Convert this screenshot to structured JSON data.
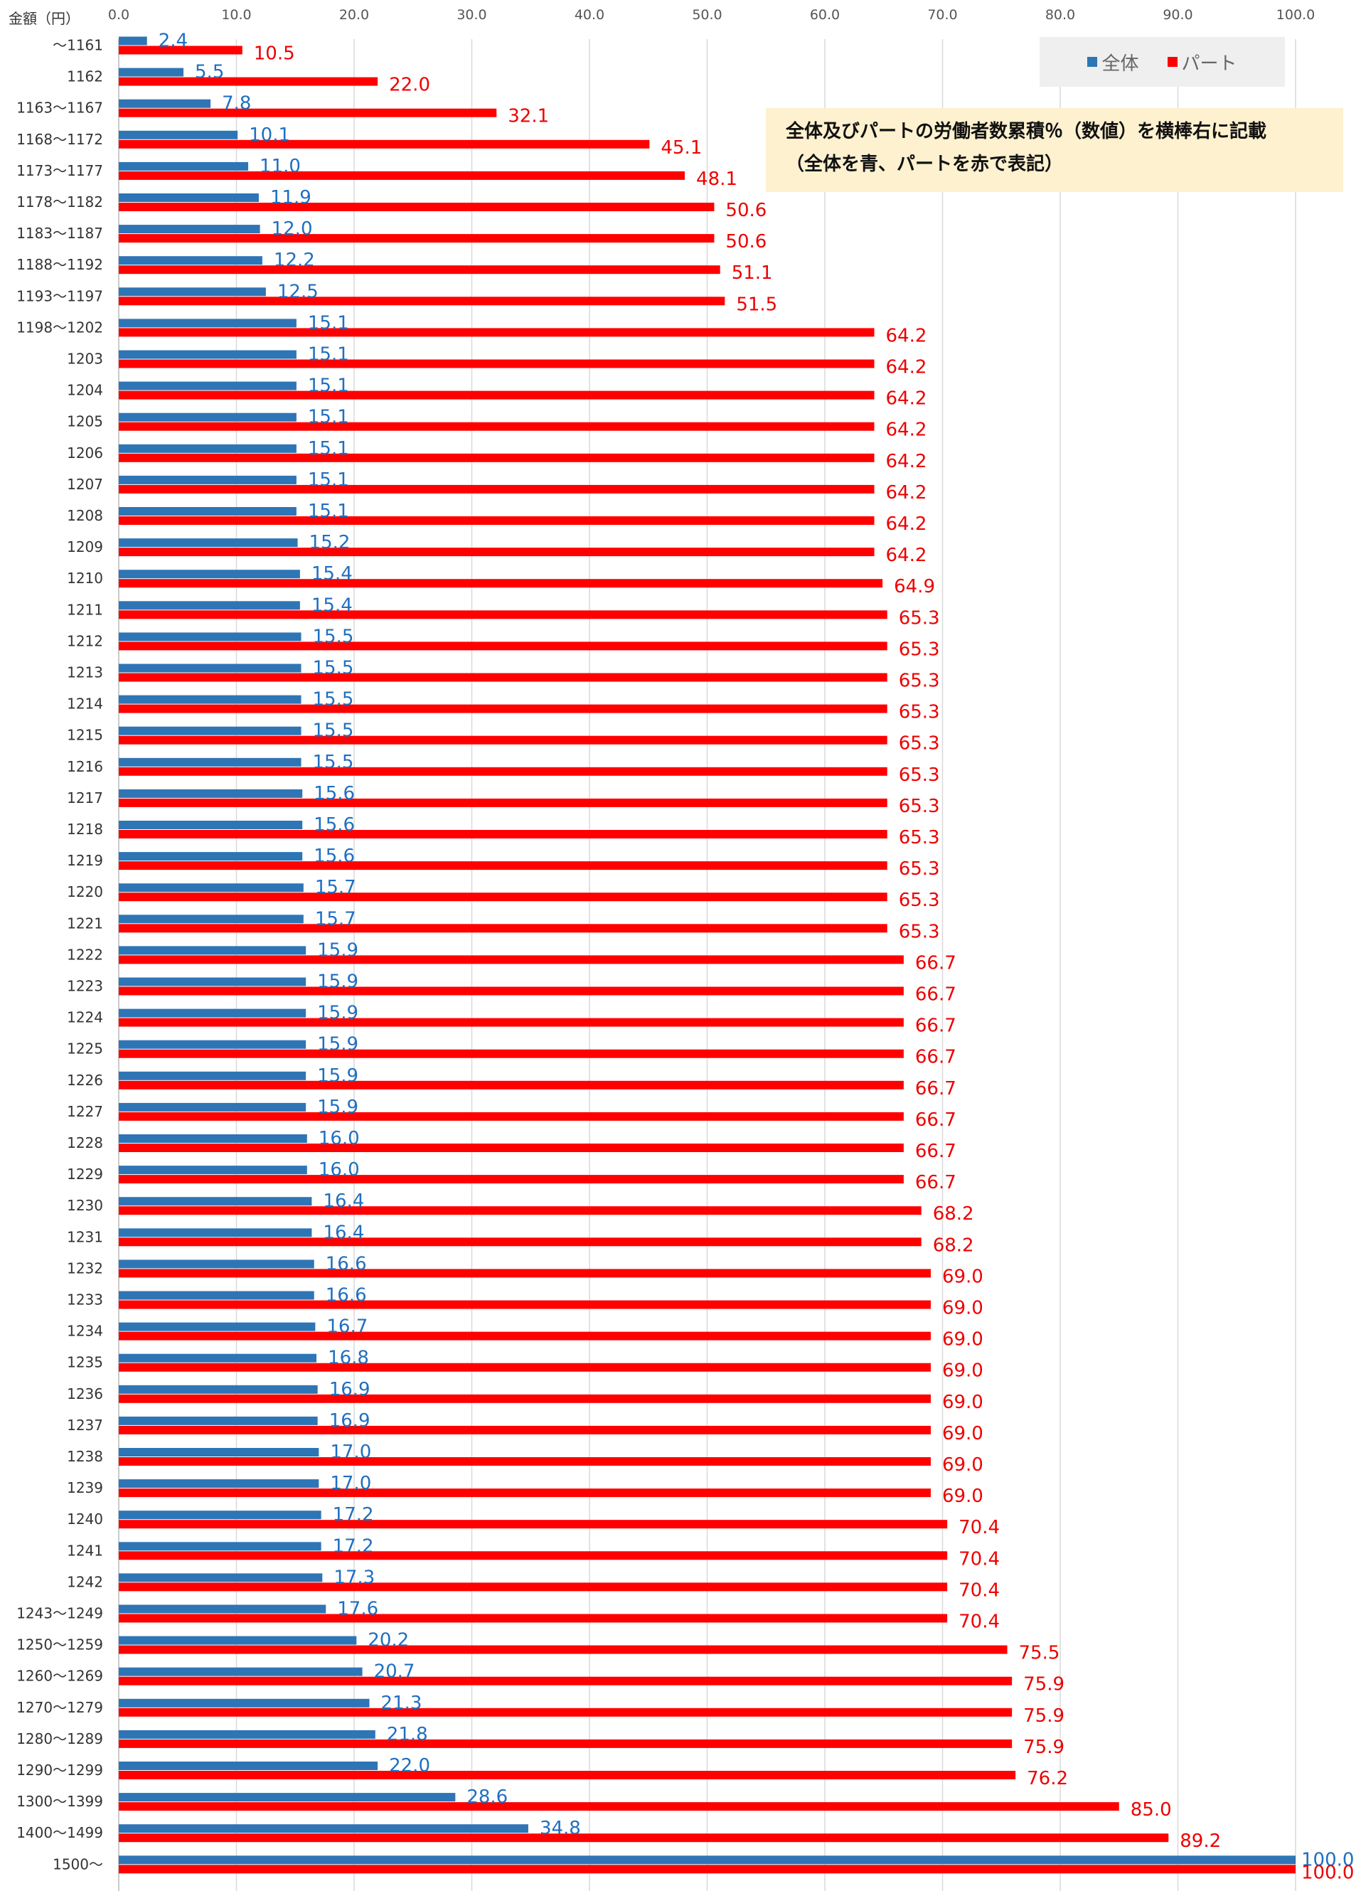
{
  "y_axis_title": "金額（円）",
  "legend": [
    {
      "label": "全体",
      "color": "#2e75b6"
    },
    {
      "label": "パート",
      "color": "#ff0000"
    }
  ],
  "note": {
    "line1": "全体及びパートの労働者数累積％（数値）を横棒右に記載",
    "line2": "（全体を青、パートを赤で表記）"
  },
  "chart_data": {
    "type": "bar",
    "orientation": "horizontal",
    "xlim": [
      0,
      100
    ],
    "x_ticks": [
      "0.0",
      "10.0",
      "20.0",
      "30.0",
      "40.0",
      "50.0",
      "60.0",
      "70.0",
      "80.0",
      "90.0",
      "100.0"
    ],
    "grid": true,
    "legend_position": "top-right",
    "categories": [
      "～1161",
      "1162",
      "1163～1167",
      "1168～1172",
      "1173～1177",
      "1178～1182",
      "1183～1187",
      "1188～1192",
      "1193～1197",
      "1198～1202",
      "1203",
      "1204",
      "1205",
      "1206",
      "1207",
      "1208",
      "1209",
      "1210",
      "1211",
      "1212",
      "1213",
      "1214",
      "1215",
      "1216",
      "1217",
      "1218",
      "1219",
      "1220",
      "1221",
      "1222",
      "1223",
      "1224",
      "1225",
      "1226",
      "1227",
      "1228",
      "1229",
      "1230",
      "1231",
      "1232",
      "1233",
      "1234",
      "1235",
      "1236",
      "1237",
      "1238",
      "1239",
      "1240",
      "1241",
      "1242",
      "1243～1249",
      "1250～1259",
      "1260～1269",
      "1270～1279",
      "1280～1289",
      "1290～1299",
      "1300～1399",
      "1400～1499",
      "1500～"
    ],
    "series": [
      {
        "name": "全体",
        "color": "#2e75b6",
        "label_color": "#1f6fc0",
        "values": [
          2.4,
          5.5,
          7.8,
          10.1,
          11.0,
          11.9,
          12.0,
          12.2,
          12.5,
          15.1,
          15.1,
          15.1,
          15.1,
          15.1,
          15.1,
          15.1,
          15.2,
          15.4,
          15.4,
          15.5,
          15.5,
          15.5,
          15.5,
          15.5,
          15.6,
          15.6,
          15.6,
          15.7,
          15.7,
          15.9,
          15.9,
          15.9,
          15.9,
          15.9,
          15.9,
          16.0,
          16.0,
          16.4,
          16.4,
          16.6,
          16.6,
          16.7,
          16.8,
          16.9,
          16.9,
          17.0,
          17.0,
          17.2,
          17.2,
          17.3,
          17.6,
          20.2,
          20.7,
          21.3,
          21.8,
          22.0,
          28.6,
          34.8,
          100.0
        ]
      },
      {
        "name": "パート",
        "color": "#ff0000",
        "label_color": "#ee0000",
        "values": [
          10.5,
          22.0,
          32.1,
          45.1,
          48.1,
          50.6,
          50.6,
          51.1,
          51.5,
          64.2,
          64.2,
          64.2,
          64.2,
          64.2,
          64.2,
          64.2,
          64.2,
          64.9,
          65.3,
          65.3,
          65.3,
          65.3,
          65.3,
          65.3,
          65.3,
          65.3,
          65.3,
          65.3,
          65.3,
          66.7,
          66.7,
          66.7,
          66.7,
          66.7,
          66.7,
          66.7,
          66.7,
          68.2,
          68.2,
          69.0,
          69.0,
          69.0,
          69.0,
          69.0,
          69.0,
          69.0,
          69.0,
          70.4,
          70.4,
          70.4,
          70.4,
          75.5,
          75.9,
          75.9,
          75.9,
          76.2,
          85.0,
          89.2,
          100.0
        ]
      }
    ]
  }
}
